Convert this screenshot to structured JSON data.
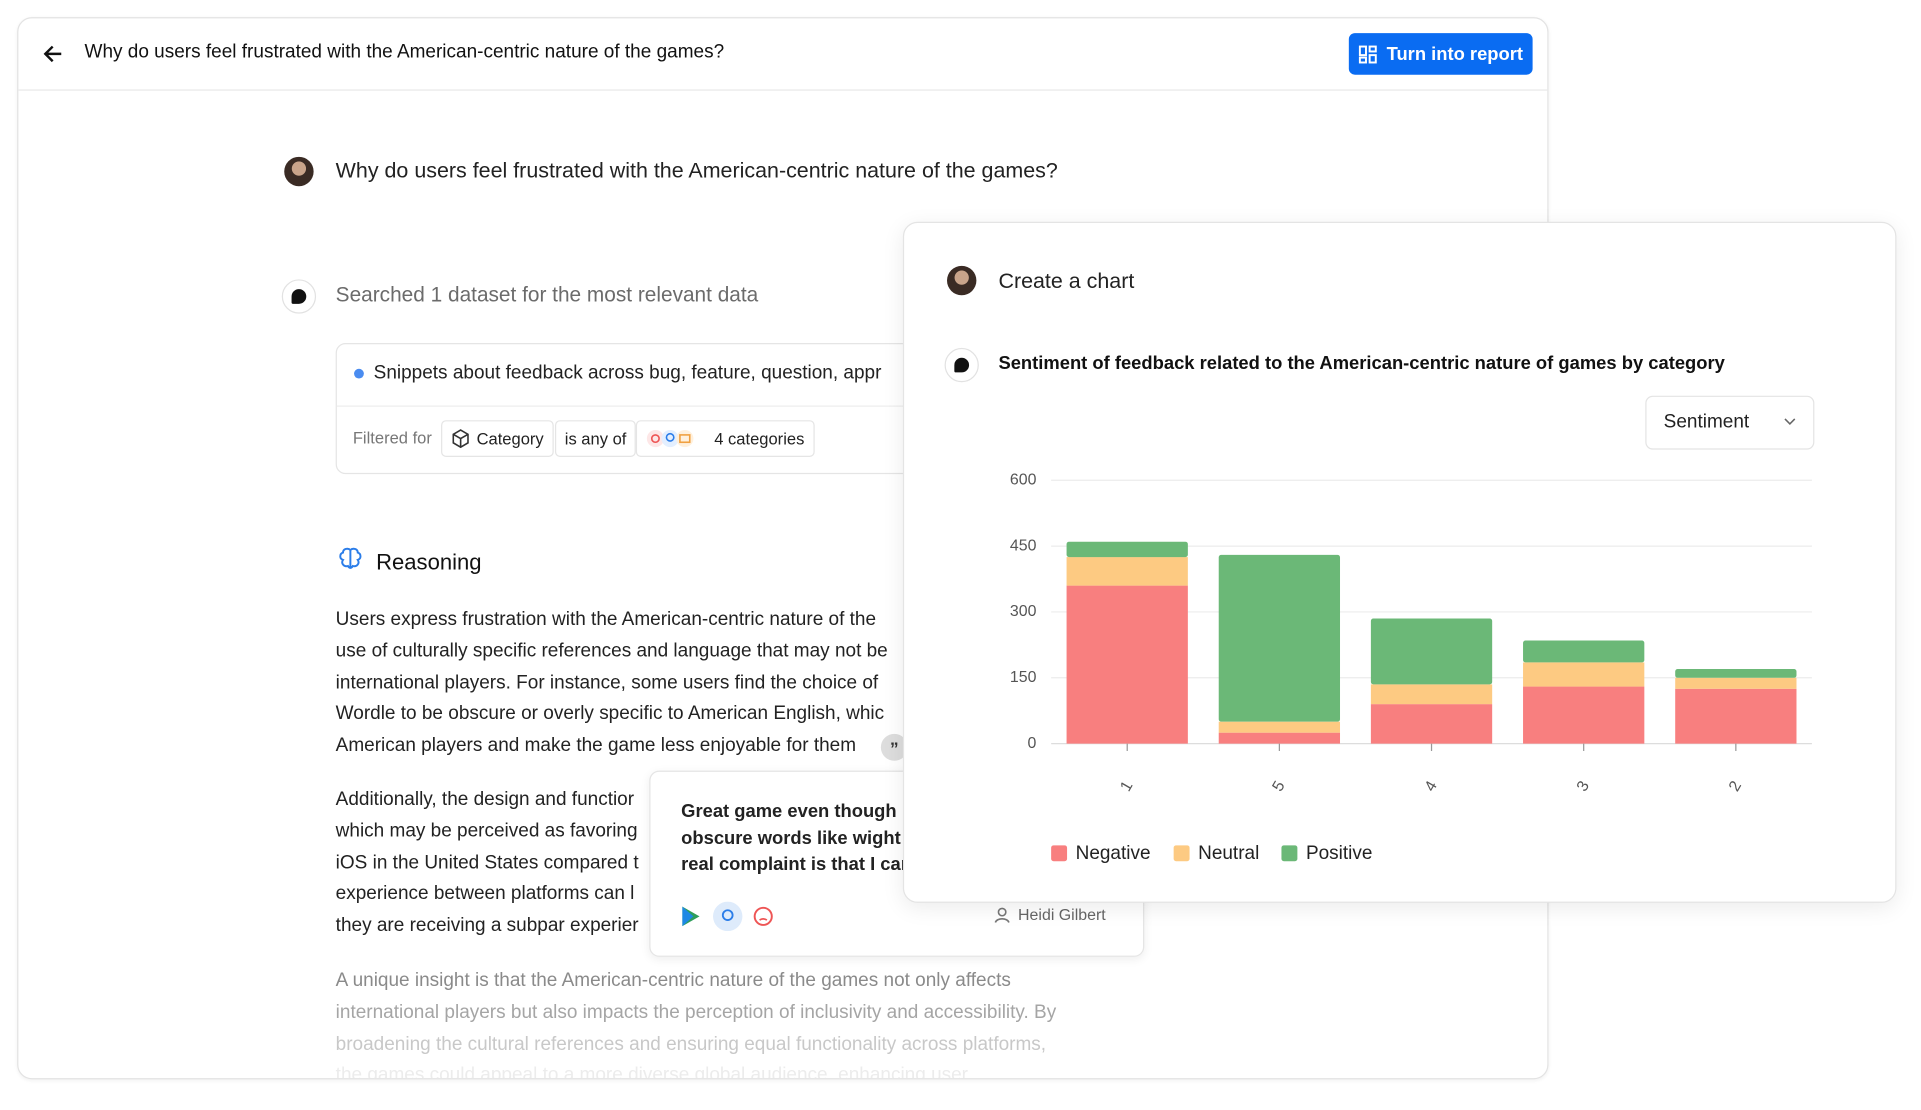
{
  "header": {
    "title": "Why do users feel frustrated with the American-centric nature of the games?",
    "button": "Turn into report"
  },
  "question": "Why do users feel frustrated with the American-centric nature of the games?",
  "search": {
    "status": "Searched 1 dataset for the most relevant data",
    "snippet": "Snippets about feedback across bug, feature, question, appr",
    "filter_label": "Filtered for",
    "filter_field": "Category",
    "filter_op": "is any of",
    "filter_value": "4 categories"
  },
  "reasoning": {
    "title": "Reasoning",
    "paragraphs": [
      [
        "Users express frustration with the American-centric nature of the",
        "use of culturally specific references and language that may not be",
        "international players. For instance, some users find the choice of",
        "Wordle to be obscure or overly specific to American English, whic",
        "American players and make the game less enjoyable for them"
      ],
      [
        "Additionally, the design and functior",
        "which may be perceived as favoring",
        "iOS in the United States compared t",
        "experience between platforms can l",
        "they are receiving a subpar experier"
      ],
      [
        "A unique insight is that the American-centric nature of the games not only affects",
        "international players but also impacts the perception of inclusivity and accessibility. By",
        "broadening the cultural references and ensuring equal functionality across platforms,",
        "the games could appeal to a more diverse global audience, enhancing user"
      ]
    ]
  },
  "quote": {
    "lines": [
      "Great game even though",
      "obscure words like wight",
      "real complaint is that I car"
    ],
    "author": "Heidi Gilbert"
  },
  "chart_panel": {
    "prompt": "Create a chart",
    "dropdown": "Sentiment"
  },
  "chart_data": {
    "type": "stacked_bar",
    "title": "Sentiment of feedback related to the American-centric nature of games by category",
    "categories": [
      "1",
      "5",
      "4",
      "3",
      "2"
    ],
    "series": [
      {
        "name": "Negative",
        "color": "#f87f7f",
        "values": [
          360,
          25,
          90,
          130,
          125
        ]
      },
      {
        "name": "Neutral",
        "color": "#fdca82",
        "values": [
          65,
          25,
          45,
          55,
          25
        ]
      },
      {
        "name": "Positive",
        "color": "#6bb877",
        "values": [
          35,
          380,
          150,
          50,
          20
        ]
      }
    ],
    "ylim": [
      0,
      600
    ],
    "yticks": [
      0,
      150,
      300,
      450,
      600
    ],
    "grid": true
  }
}
